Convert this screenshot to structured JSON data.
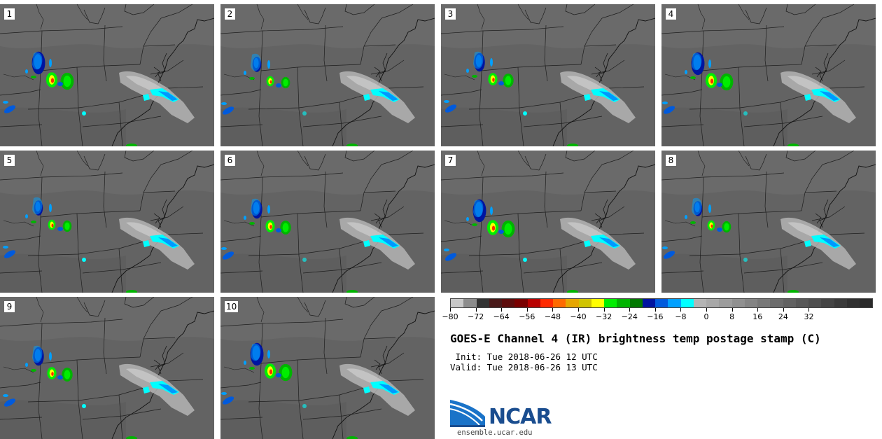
{
  "panels": [
    {
      "label": "1"
    },
    {
      "label": "2"
    },
    {
      "label": "3"
    },
    {
      "label": "4"
    },
    {
      "label": "5"
    },
    {
      "label": "6"
    },
    {
      "label": "7"
    },
    {
      "label": "8"
    },
    {
      "label": "9"
    },
    {
      "label": "10"
    }
  ],
  "colorbar": {
    "colors": [
      "#c8c8c8",
      "#8c8c8c",
      "#333333",
      "#4a1a1a",
      "#5e0d0d",
      "#7a0000",
      "#b80000",
      "#ff2a00",
      "#ff6a00",
      "#e6a600",
      "#d0c400",
      "#ffff00",
      "#00ee00",
      "#00b400",
      "#007800",
      "#0014a0",
      "#005adc",
      "#00a0ff",
      "#00ffff",
      "#b4b4b4",
      "#a8a8a8",
      "#9c9c9c",
      "#909090",
      "#848484",
      "#787878",
      "#6c6c6c",
      "#626262",
      "#585858",
      "#4e4e4e",
      "#444444",
      "#3a3a3a",
      "#303030",
      "#2a2a2a"
    ],
    "tick_labels": [
      "−80",
      "−72",
      "−64",
      "−56",
      "−48",
      "−40",
      "−32",
      "−24",
      "−16",
      "−8",
      "0",
      "8",
      "16",
      "24",
      "32"
    ]
  },
  "title": "GOES-E Channel 4 (IR) brightness temp postage stamp (C)",
  "init_line": " Init: Tue 2018-06-26 12 UTC",
  "valid_line": "Valid: Tue 2018-06-26 13 UTC",
  "logo": {
    "text": "NCAR",
    "url": "ensemble.ucar.edu"
  },
  "colors": {
    "map_background": "#636363",
    "brand_blue": "#1a4d8f",
    "cloud_light": "#b4b4b4"
  }
}
